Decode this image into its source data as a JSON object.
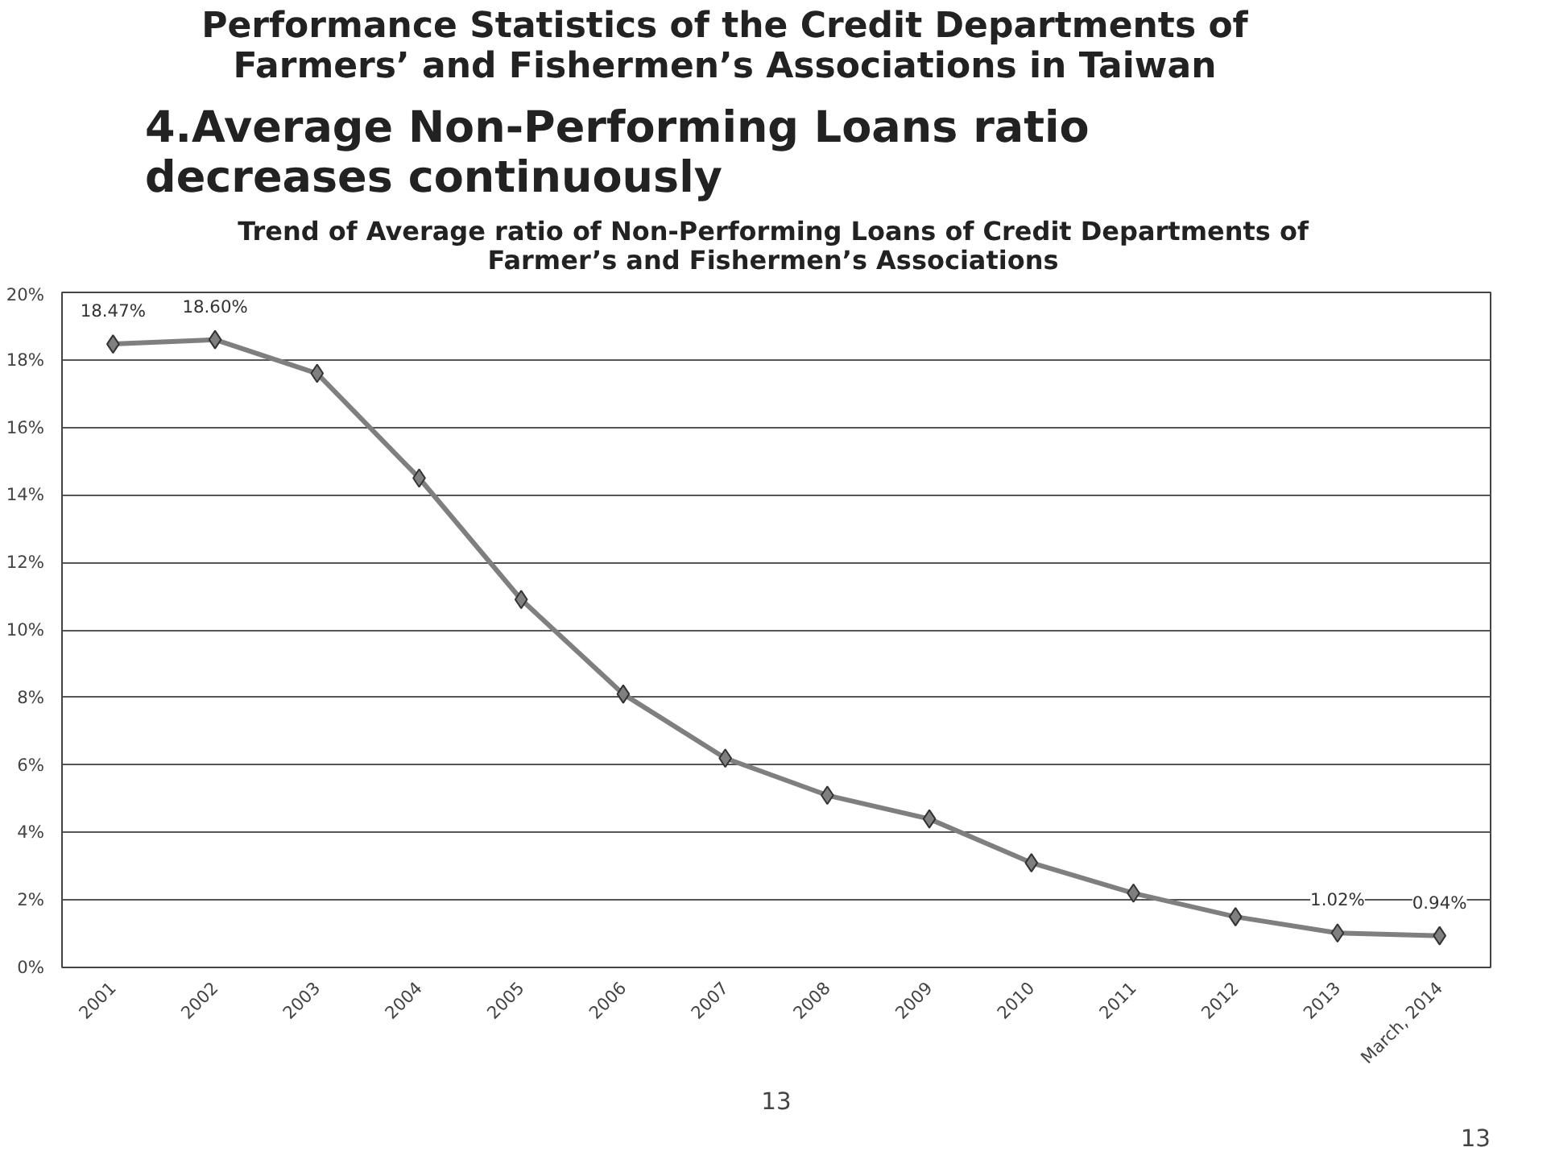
{
  "chart_data": {
    "type": "line",
    "title": "Performance Statistics of the Credit Departments of Farmers’ and Fishermen’s Associations in Taiwan",
    "subtitle": "4.Average Non-Performing Loans ratio decreases continuously",
    "annotations": [
      "Trend of Average ratio of Non-Performing Loans of Credit Departments of Farmer’s and Fishermen’s Associations",
      "13",
      "13"
    ],
    "categories": [
      "2001",
      "2002",
      "2003",
      "2004",
      "2005",
      "2006",
      "2007",
      "2008",
      "2009",
      "2010",
      "2011",
      "2012",
      "2013",
      "March, 2014"
    ],
    "series": [
      {
        "color": "#7f7f7f",
        "values": [
          18.47,
          18.6,
          17.6,
          14.5,
          10.9,
          8.1,
          6.2,
          5.1,
          4.4,
          3.1,
          2.2,
          1.5,
          1.02,
          0.94
        ],
        "value_labels": [
          "18.47%",
          "18.60%",
          null,
          null,
          null,
          null,
          null,
          null,
          null,
          null,
          null,
          null,
          "1.02%",
          "0.94%"
        ]
      }
    ],
    "ylim": [
      0,
      20
    ],
    "yticks": [
      {
        "value": 0,
        "label": "0%"
      },
      {
        "value": 2,
        "label": "2%"
      },
      {
        "value": 4,
        "label": "4%"
      },
      {
        "value": 6,
        "label": "6%"
      },
      {
        "value": 8,
        "label": "8%"
      },
      {
        "value": 10,
        "label": "10%"
      },
      {
        "value": 12,
        "label": "12%"
      },
      {
        "value": 14,
        "label": "14%"
      },
      {
        "value": 16,
        "label": "16%"
      },
      {
        "value": 18,
        "label": "18%"
      },
      {
        "value": 20,
        "label": "20%"
      }
    ],
    "grid": "y",
    "marker": "diamond",
    "line_style": "solid"
  }
}
